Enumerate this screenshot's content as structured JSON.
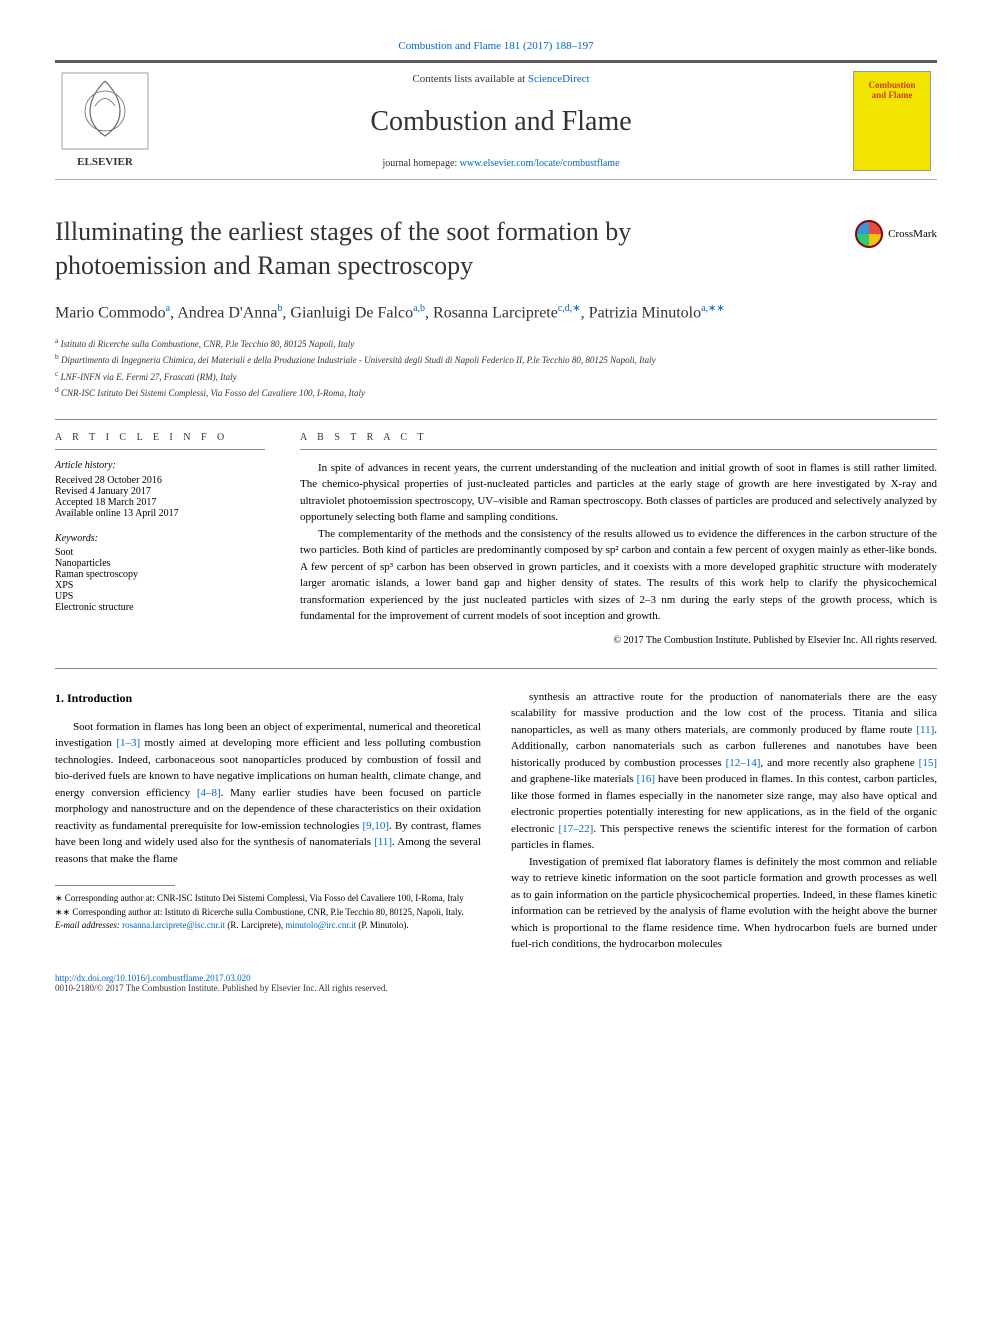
{
  "citation": "Combustion and Flame 181 (2017) 188–197",
  "header": {
    "contents_prefix": "Contents lists available at ",
    "contents_link": "ScienceDirect",
    "journal_name": "Combustion and Flame",
    "homepage_prefix": "journal homepage: ",
    "homepage_url": "www.elsevier.com/locate/combustflame",
    "cover_line1": "Combustion",
    "cover_line2": "and Flame",
    "elsevier_label": "ELSEVIER"
  },
  "crossmark_label": "CrossMark",
  "title": "Illuminating the earliest stages of the soot formation by photoemission and Raman spectroscopy",
  "authors_html": "Mario Commodo<sup>a</sup>, Andrea D'Anna<sup>b</sup>, Gianluigi De Falco<sup>a,b</sup>, Rosanna Larciprete<sup>c,d,∗</sup>, Patrizia Minutolo<sup>a,∗∗</sup>",
  "affiliations": [
    "a Istituto di Ricerche sulla Combustione, CNR, P.le Tecchio 80, 80125 Napoli, Italy",
    "b Dipartimento di Ingegneria Chimica, dei Materiali e della Produzione Industriale - Università degli Studi di Napoli Federico II, P.le Tecchio 80, 80125 Napoli, Italy",
    "c LNF-INFN via E. Fermi 27, Frascati (RM), Italy",
    "d CNR-ISC Istituto Dei Sistemi Complessi, Via Fosso del Cavaliere 100, I-Roma, Italy"
  ],
  "info": {
    "heading": "a r t i c l e   i n f o",
    "history_label": "Article history:",
    "received": "Received 28 October 2016",
    "revised": "Revised 4 January 2017",
    "accepted": "Accepted 18 March 2017",
    "online": "Available online 13 April 2017",
    "keywords_label": "Keywords:",
    "keywords": [
      "Soot",
      "Nanoparticles",
      "Raman spectroscopy",
      "XPS",
      "UPS",
      "Electronic structure"
    ]
  },
  "abstract": {
    "heading": "a b s t r a c t",
    "p1": "In spite of advances in recent years, the current understanding of the nucleation and initial growth of soot in flames is still rather limited. The chemico-physical properties of just-nucleated particles and particles at the early stage of growth are here investigated by X-ray and ultraviolet photoemission spectroscopy, UV–visible and Raman spectroscopy. Both classes of particles are produced and selectively analyzed by opportunely selecting both flame and sampling conditions.",
    "p2": "The complementarity of the methods and the consistency of the results allowed us to evidence the differences in the carbon structure of the two particles. Both kind of particles are predominantly composed by sp² carbon and contain a few percent of oxygen mainly as ether-like bonds. A few percent of sp³ carbon has been observed in grown particles, and it coexists with a more developed graphitic structure with moderately larger aromatic islands, a lower band gap and higher density of states. The results of this work help to clarify the physicochemical transformation experienced by the just nucleated particles with sizes of 2–3 nm during the early steps of the growth process, which is fundamental for the improvement of current models of soot inception and growth.",
    "copyright": "© 2017 The Combustion Institute. Published by Elsevier Inc. All rights reserved."
  },
  "body": {
    "section_heading": "1. Introduction",
    "col1_p1_a": "Soot formation in flames has long been an object of experimental, numerical and theoretical investigation ",
    "col1_ref1": "[1–3]",
    "col1_p1_b": " mostly aimed at developing more efficient and less polluting combustion technologies. Indeed, carbonaceous soot nanoparticles produced by combustion of fossil and bio-derived fuels are known to have negative implications on human health, climate change, and energy conversion efficiency ",
    "col1_ref2": "[4–8]",
    "col1_p1_c": ". Many earlier studies have been focused on particle morphology and nanostructure and on the dependence of these characteristics on their oxidation reactivity as fundamental prerequisite for low-emission technologies ",
    "col1_ref3": "[9,10]",
    "col1_p1_d": ". By contrast, flames have been long and widely used also for the synthesis of nanomaterials ",
    "col1_ref4": "[11]",
    "col1_p1_e": ". Among the several reasons that make the flame",
    "col2_p1_a": "synthesis an attractive route for the production of nanomaterials there are the easy scalability for massive production and the low cost of the process. Titania and silica nanoparticles, as well as many others materials, are commonly produced by flame route ",
    "col2_ref1": "[11]",
    "col2_p1_b": ". Additionally, carbon nanomaterials such as carbon fullerenes and nanotubes have been historically produced by combustion processes ",
    "col2_ref2": "[12–14]",
    "col2_p1_c": ", and more recently also graphene ",
    "col2_ref3": "[15]",
    "col2_p1_d": " and graphene-like materials ",
    "col2_ref4": "[16]",
    "col2_p1_e": " have been produced in flames. In this contest, carbon particles, like those formed in flames especially in the nanometer size range, may also have optical and electronic properties potentially interesting for new applications, as in the field of the organic electronic ",
    "col2_ref5": "[17–22]",
    "col2_p1_f": ". This perspective renews the scientific interest for the formation of carbon particles in flames.",
    "col2_p2": "Investigation of premixed flat laboratory flames is definitely the most common and reliable way to retrieve kinetic information on the soot particle formation and growth processes as well as to gain information on the particle physicochemical properties. Indeed, in these flames kinetic information can be retrieved by the analysis of flame evolution with the height above the burner which is proportional to the flame residence time. When hydrocarbon fuels are burned under fuel-rich conditions, the hydrocarbon molecules"
  },
  "footnotes": {
    "f1": "∗ Corresponding author at: CNR-ISC Istituto Dei Sistemi Complessi, Via Fosso del Cavaliere 100, I-Roma, Italy",
    "f2": "∗∗ Corresponding author at: Istituto di Ricerche sulla Combustione, CNR, P.le Tecchio 80, 80125, Napoli, Italy.",
    "email_label": "E-mail addresses: ",
    "email1": "rosanna.larciprete@isc.cnr.it",
    "email1_name": " (R. Larciprete), ",
    "email2": "minutolo@irc.cnr.it",
    "email2_name": " (P. Minutolo)."
  },
  "footer": {
    "doi": "http://dx.doi.org/10.1016/j.combustflame.2017.03.020",
    "issn_copyright": "0010-2180/© 2017 The Combustion Institute. Published by Elsevier Inc. All rights reserved."
  },
  "colors": {
    "link": "#0066cc",
    "text": "#333333",
    "rule": "#888888",
    "cover_bg": "#f0e400",
    "cover_text": "#d04020"
  }
}
